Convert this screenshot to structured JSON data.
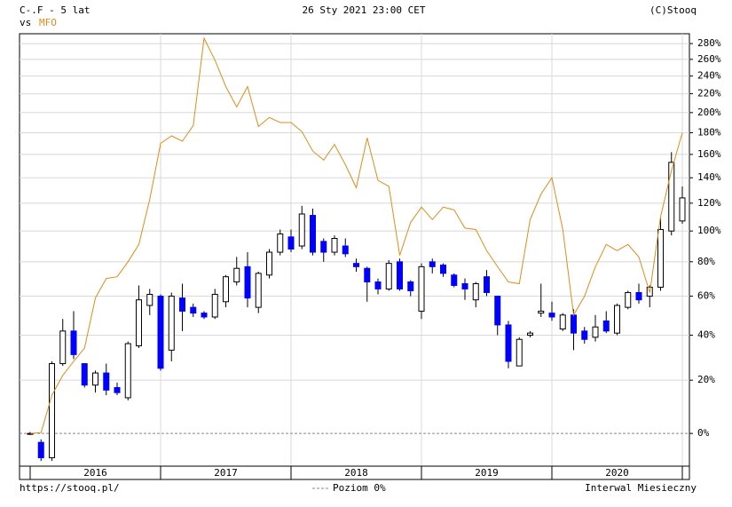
{
  "chart_data": {
    "type": "candlestick",
    "title": "C-.F - 5 lat",
    "compare_prefix": "vs",
    "timestamp": "26 Sty 2021 23:00 CET",
    "source": "(C)Stooq",
    "footer_left": "https://stooq.pl/",
    "footer_right": "Interwal Miesieczny",
    "zero_line": {
      "value": 0,
      "label": "Poziom 0%"
    },
    "yscale": "log-growth",
    "grid": true,
    "ylim": [
      -10.6,
      293
    ],
    "yticks": [
      {
        "value": 0,
        "label": "0%"
      },
      {
        "value": 20,
        "label": "20%"
      },
      {
        "value": 40,
        "label": "40%"
      },
      {
        "value": 60,
        "label": "60%"
      },
      {
        "value": 80,
        "label": "80%"
      },
      {
        "value": 100,
        "label": "100%"
      },
      {
        "value": 120,
        "label": "120%"
      },
      {
        "value": 140,
        "label": "140%"
      },
      {
        "value": 160,
        "label": "160%"
      },
      {
        "value": 180,
        "label": "180%"
      },
      {
        "value": 200,
        "label": "200%"
      },
      {
        "value": 220,
        "label": "220%"
      },
      {
        "value": 240,
        "label": "240%"
      },
      {
        "value": 260,
        "label": "260%"
      },
      {
        "value": 280,
        "label": "280%"
      }
    ],
    "categories": [
      null,
      null,
      null,
      null,
      null,
      null,
      null,
      null,
      null,
      null,
      null,
      null,
      null,
      null,
      null,
      null,
      null,
      null,
      null,
      null,
      null,
      null,
      null,
      null,
      null,
      null,
      null,
      null,
      null,
      null,
      null,
      null,
      null,
      null,
      null,
      null,
      null,
      null,
      null,
      null,
      null,
      null,
      null,
      null,
      null,
      null,
      null,
      null,
      null,
      null,
      null,
      null,
      null,
      null,
      null,
      null,
      null,
      null,
      null,
      null,
      null
    ],
    "year_labels": [
      "2016",
      "2017",
      "2018",
      "2019",
      "2020"
    ],
    "candles": {
      "up_color": "#ffffff",
      "down_color": "#0000ff",
      "open": [
        0,
        -3,
        -8,
        27,
        42,
        27,
        18,
        23,
        17,
        13,
        35,
        55,
        60,
        33,
        59,
        54,
        51,
        49,
        57,
        68,
        77,
        54,
        72,
        86,
        96,
        90,
        111,
        93,
        86,
        90,
        79,
        76,
        68,
        64,
        80,
        68,
        52,
        80,
        78,
        72,
        67,
        58,
        71,
        60,
        45,
        26,
        40,
        51,
        51,
        43,
        50,
        42,
        39,
        47,
        41,
        54,
        62,
        60,
        65,
        100,
        107
      ],
      "high": [
        0.5,
        -2,
        28,
        48,
        52,
        27,
        24,
        27,
        19,
        37,
        66,
        64,
        61,
        62,
        67,
        56,
        52,
        64,
        72,
        83,
        86,
        74,
        88,
        101,
        101,
        118,
        116,
        95,
        97,
        95,
        82,
        77,
        70,
        81,
        82,
        69,
        79,
        82,
        79,
        73,
        70,
        68,
        75,
        60,
        47,
        39,
        42,
        67,
        57,
        51,
        53,
        44,
        50,
        52,
        56,
        63,
        67,
        66,
        109,
        162,
        133
      ],
      "low": [
        -0.5,
        -9,
        -9,
        26,
        29,
        17,
        15,
        14,
        14,
        12,
        34,
        50,
        24,
        28,
        42,
        49,
        48,
        48,
        54,
        66,
        54,
        51,
        70,
        84,
        86,
        88,
        84,
        80,
        84,
        83,
        74,
        57,
        61,
        63,
        63,
        60,
        48,
        73,
        71,
        65,
        58,
        54,
        60,
        40,
        25,
        26,
        39,
        49,
        47,
        42,
        33,
        36,
        37,
        41,
        40,
        53,
        56,
        54,
        63,
        97,
        105
      ],
      "close": [
        0,
        -8,
        27,
        42,
        31,
        18,
        23,
        16,
        15,
        36,
        58,
        61,
        25,
        60,
        52,
        51,
        49,
        61,
        71,
        76,
        59,
        73,
        86,
        98,
        88,
        112,
        86,
        86,
        95,
        85,
        77,
        68,
        64,
        79,
        64,
        63,
        77,
        77,
        73,
        66,
        64,
        67,
        62,
        45,
        28,
        38,
        41,
        52,
        49,
        50,
        41,
        38,
        44,
        42,
        55,
        62,
        58,
        65,
        101,
        153,
        124
      ]
    },
    "series": [
      {
        "name": "MFO",
        "color": "#e08c1a",
        "values": [
          0,
          0.3,
          14,
          22,
          28,
          34,
          59,
          70,
          71,
          80,
          91,
          123,
          170,
          177,
          172,
          187,
          287,
          259,
          228,
          206,
          228,
          186,
          195,
          190,
          190,
          181,
          163,
          155,
          169,
          151,
          132,
          175,
          138,
          133,
          84,
          106,
          117,
          108,
          117,
          115,
          102,
          101,
          87,
          77,
          68,
          67,
          108,
          127,
          140,
          101,
          50,
          60,
          77,
          91,
          87,
          91,
          83,
          62,
          110,
          146,
          180
        ]
      }
    ]
  }
}
